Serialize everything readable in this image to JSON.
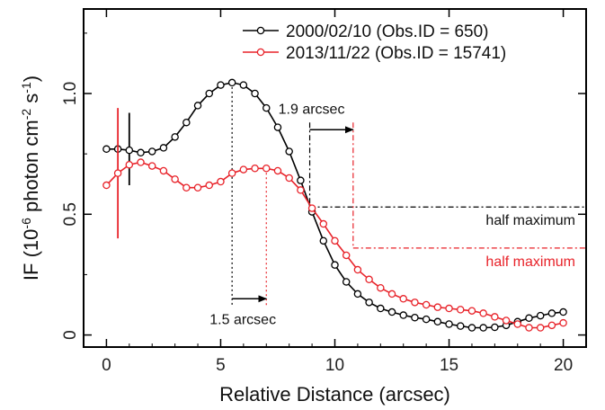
{
  "chart_data": {
    "type": "line",
    "title": "",
    "xlabel": "Relative Distance (arcsec)",
    "ylabel_parts": [
      "IF (10",
      "-6",
      " photon cm",
      "-2",
      " s",
      "-1",
      ")"
    ],
    "xlim": [
      -1,
      21
    ],
    "ylim": [
      -0.05,
      1.35
    ],
    "xticks": [
      0,
      5,
      10,
      15,
      20
    ],
    "xtick_labels": [
      "0",
      "5",
      "10",
      "15",
      "20"
    ],
    "yticks": [
      0,
      0.5,
      1.0
    ],
    "ytick_labels": [
      "0",
      "0.5",
      "1.0"
    ],
    "grid": false,
    "legend_position": "top-right",
    "series": [
      {
        "name": "2000/02/10 (Obs.ID = 650)",
        "color": "#000000",
        "x": [
          0,
          0.5,
          1,
          1.5,
          2,
          2.5,
          3,
          3.5,
          4,
          4.5,
          5,
          5.5,
          6,
          6.5,
          7,
          7.5,
          8,
          8.5,
          9,
          9.5,
          10,
          10.5,
          11,
          11.5,
          12,
          12.5,
          13,
          13.5,
          14,
          14.5,
          15,
          15.5,
          16,
          16.5,
          17,
          17.5,
          18,
          18.5,
          19,
          19.5,
          20
        ],
        "y": [
          0.77,
          0.77,
          0.765,
          0.755,
          0.76,
          0.775,
          0.82,
          0.88,
          0.95,
          1.0,
          1.035,
          1.045,
          1.035,
          1.0,
          0.94,
          0.86,
          0.76,
          0.64,
          0.51,
          0.39,
          0.29,
          0.22,
          0.17,
          0.135,
          0.11,
          0.095,
          0.082,
          0.072,
          0.065,
          0.055,
          0.045,
          0.037,
          0.03,
          0.03,
          0.032,
          0.04,
          0.055,
          0.07,
          0.08,
          0.09,
          0.095
        ],
        "error_bar": {
          "x": 1,
          "y_low": 0.62,
          "y_high": 0.92
        }
      },
      {
        "name": "2013/11/22 (Obs.ID = 15741)",
        "color": "#e8232a",
        "x": [
          0,
          0.5,
          1,
          1.5,
          2,
          2.5,
          3,
          3.5,
          4,
          4.5,
          5,
          5.5,
          6,
          6.5,
          7,
          7.5,
          8,
          8.5,
          9,
          9.5,
          10,
          10.5,
          11,
          11.5,
          12,
          12.5,
          13,
          13.5,
          14,
          14.5,
          15,
          15.5,
          16,
          16.5,
          17,
          17.5,
          18,
          18.5,
          19,
          19.5,
          20
        ],
        "y": [
          0.62,
          0.67,
          0.705,
          0.715,
          0.7,
          0.68,
          0.645,
          0.61,
          0.61,
          0.62,
          0.635,
          0.67,
          0.685,
          0.69,
          0.69,
          0.68,
          0.65,
          0.6,
          0.525,
          0.46,
          0.39,
          0.33,
          0.27,
          0.23,
          0.195,
          0.17,
          0.15,
          0.135,
          0.125,
          0.115,
          0.11,
          0.105,
          0.1,
          0.09,
          0.075,
          0.06,
          0.045,
          0.03,
          0.03,
          0.04,
          0.05
        ],
        "error_bar": {
          "x": 0.5,
          "y_low": 0.4,
          "y_high": 0.94
        }
      }
    ],
    "annotations": {
      "peak_black_x": 5.5,
      "peak_black_y": 1.045,
      "peak_red_x": 7.0,
      "peak_red_y": 0.69,
      "halfmax_black_x": 8.9,
      "halfmax_black_y": 0.53,
      "halfmax_red_x": 10.8,
      "halfmax_red_y": 0.36,
      "arrow_top_y": 0.85,
      "arrow_bottom_y": 0.15,
      "label_top": "1.9 arcsec",
      "label_bottom": "1.5 arcsec",
      "label_half_black": "half maximum",
      "label_half_red": "half maximum"
    }
  }
}
